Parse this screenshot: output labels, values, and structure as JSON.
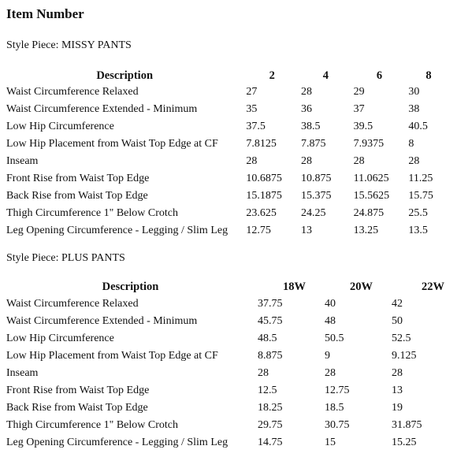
{
  "page": {
    "heading": "Item Number"
  },
  "missy": {
    "style_piece": "Style Piece: MISSY PANTS",
    "header": {
      "description": "Description",
      "sizes": [
        "2",
        "4",
        "6",
        "8"
      ]
    },
    "rows": [
      {
        "label": "Waist Circumference Relaxed",
        "values": [
          "27",
          "28",
          "29",
          "30"
        ]
      },
      {
        "label": "Waist Circumference Extended - Minimum",
        "values": [
          "35",
          "36",
          "37",
          "38"
        ]
      },
      {
        "label": "Low Hip Circumference",
        "values": [
          "37.5",
          "38.5",
          "39.5",
          "40.5"
        ]
      },
      {
        "label": "Low Hip Placement from Waist Top Edge at CF",
        "values": [
          "7.8125",
          "7.875",
          "7.9375",
          "8"
        ]
      },
      {
        "label": "Inseam",
        "values": [
          "28",
          "28",
          "28",
          "28"
        ]
      },
      {
        "label": "Front Rise from Waist Top Edge",
        "values": [
          "10.6875",
          "10.875",
          "11.0625",
          "11.25"
        ]
      },
      {
        "label": "Back Rise from Waist Top Edge",
        "values": [
          "15.1875",
          "15.375",
          "15.5625",
          "15.75"
        ]
      },
      {
        "label": "Thigh Circumference 1\" Below Crotch",
        "values": [
          "23.625",
          "24.25",
          "24.875",
          "25.5"
        ]
      },
      {
        "label": "Leg Opening Circumference - Legging / Slim Leg",
        "values": [
          "12.75",
          "13",
          "13.25",
          "13.5"
        ]
      }
    ]
  },
  "plus": {
    "style_piece": "Style Piece: PLUS PANTS",
    "header": {
      "description": "Description",
      "sizes": [
        "18W",
        "20W",
        "22W"
      ]
    },
    "rows": [
      {
        "label": "Waist Circumference Relaxed",
        "values": [
          "37.75",
          "40",
          "42"
        ]
      },
      {
        "label": "Waist Circumference Extended - Minimum",
        "values": [
          "45.75",
          "48",
          "50"
        ]
      },
      {
        "label": "Low Hip Circumference",
        "values": [
          "48.5",
          "50.5",
          "52.5"
        ]
      },
      {
        "label": "Low Hip Placement from Waist Top Edge at CF",
        "values": [
          "8.875",
          "9",
          "9.125"
        ]
      },
      {
        "label": "Inseam",
        "values": [
          "28",
          "28",
          "28"
        ]
      },
      {
        "label": "Front Rise from Waist Top Edge",
        "values": [
          "12.5",
          "12.75",
          "13"
        ]
      },
      {
        "label": "Back Rise from Waist Top Edge",
        "values": [
          "18.25",
          "18.5",
          "19"
        ]
      },
      {
        "label": "Thigh Circumference 1\" Below Crotch",
        "values": [
          "29.75",
          "30.75",
          "31.875"
        ]
      },
      {
        "label": "Leg Opening Circumference - Legging / Slim Leg",
        "values": [
          "14.75",
          "15",
          "15.25"
        ]
      }
    ]
  }
}
